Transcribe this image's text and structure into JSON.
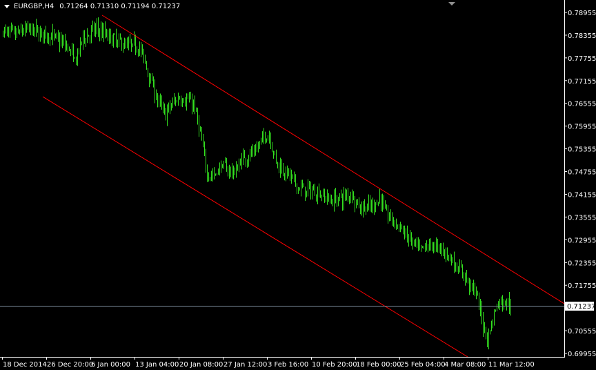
{
  "header": {
    "symbol": "EURGBP,H4",
    "ohlc": "0.71264 0.71310 0.71194 0.71237",
    "menu_icon": "triangle-down-icon"
  },
  "colors": {
    "background": "#000000",
    "bars": "#33e01f",
    "channel": "#ff0000",
    "axis": "#ffffff",
    "bid_line": "#8090a0"
  },
  "chart_data": {
    "type": "bar",
    "subtype": "ohlc",
    "timeframe": "H4",
    "current_price": "0.71237",
    "ylim": [
      0.69955,
      0.78955
    ],
    "y_ticks": [
      "0.78955",
      "0.78355",
      "0.77755",
      "0.77155",
      "0.76555",
      "0.75955",
      "0.75355",
      "0.74755",
      "0.74155",
      "0.73555",
      "0.72955",
      "0.72355",
      "0.71755",
      "0.70555",
      "0.69955"
    ],
    "x_ticks": [
      "18 Dec 2014",
      "26 Dec 20:00",
      "6 Jan 00:00",
      "13 Jan 04:00",
      "20 Jan 08:00",
      "27 Jan 12:00",
      "3 Feb 16:00",
      "10 Feb 20:00",
      "18 Feb 00:00",
      "25 Feb 04:00",
      "4 Mar 08:00",
      "11 Mar 12:00"
    ],
    "grid": false,
    "price_path": [
      [
        0,
        0.78463
      ],
      [
        8,
        0.78372
      ],
      [
        18,
        0.78518
      ],
      [
        28,
        0.78408
      ],
      [
        38,
        0.78281
      ],
      [
        48,
        0.78008
      ],
      [
        52,
        0.77643
      ],
      [
        58,
        0.78281
      ],
      [
        68,
        0.78518
      ],
      [
        78,
        0.78281
      ],
      [
        88,
        0.78099
      ],
      [
        98,
        0.78099
      ],
      [
        103,
        0.77643
      ],
      [
        108,
        0.77097
      ],
      [
        113,
        0.7655
      ],
      [
        118,
        0.76277
      ],
      [
        123,
        0.7655
      ],
      [
        128,
        0.76732
      ],
      [
        133,
        0.76641
      ],
      [
        138,
        0.7655
      ],
      [
        143,
        0.7573
      ],
      [
        148,
        0.74728
      ],
      [
        153,
        0.74637
      ],
      [
        158,
        0.74911
      ],
      [
        163,
        0.74819
      ],
      [
        168,
        0.74728
      ],
      [
        173,
        0.75093
      ],
      [
        178,
        0.75184
      ],
      [
        183,
        0.75275
      ],
      [
        188,
        0.75639
      ],
      [
        193,
        0.7573
      ],
      [
        198,
        0.75002
      ],
      [
        203,
        0.74819
      ],
      [
        208,
        0.74637
      ],
      [
        213,
        0.74364
      ],
      [
        218,
        0.74273
      ],
      [
        228,
        0.74218
      ],
      [
        238,
        0.73999
      ],
      [
        248,
        0.74091
      ],
      [
        253,
        0.74182
      ],
      [
        258,
        0.73817
      ],
      [
        268,
        0.73817
      ],
      [
        273,
        0.74091
      ],
      [
        278,
        0.73635
      ],
      [
        288,
        0.73271
      ],
      [
        298,
        0.72815
      ],
      [
        303,
        0.72633
      ],
      [
        308,
        0.72815
      ],
      [
        318,
        0.72724
      ],
      [
        323,
        0.72542
      ],
      [
        328,
        0.72269
      ],
      [
        333,
        0.72087
      ],
      [
        338,
        0.71813
      ],
      [
        343,
        0.7154
      ],
      [
        348,
        0.7072
      ],
      [
        351,
        0.70356
      ],
      [
        354,
        0.7072
      ],
      [
        358,
        0.71267
      ],
      [
        363,
        0.71358
      ],
      [
        368,
        0.71237
      ]
    ],
    "channel_lines": [
      {
        "from": [
          72,
          0.78882
        ],
        "to": [
          407,
          0.71267
        ]
      },
      {
        "from": [
          29,
          0.76732
        ],
        "to": [
          337,
          0.69864
        ]
      }
    ]
  }
}
